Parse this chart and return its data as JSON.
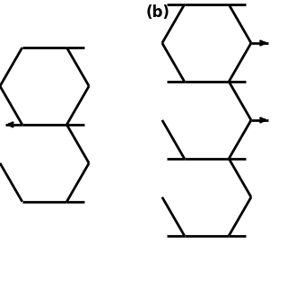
{
  "label_b": "(b)",
  "label_fontsize": 12,
  "bg_color": "#ffffff",
  "line_color": "#000000",
  "line_width": 2.0,
  "fig_width": 3.2,
  "fig_height": 3.2,
  "dpi": 100,
  "xlim": [
    0,
    10
  ],
  "ylim": [
    0,
    10
  ]
}
